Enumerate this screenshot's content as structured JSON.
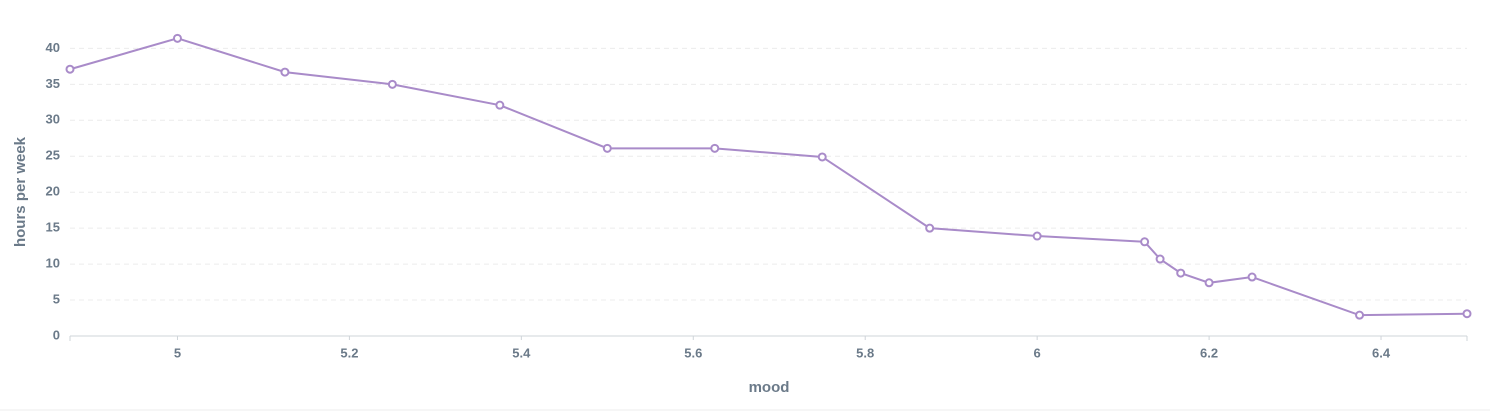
{
  "chart_data": {
    "type": "line",
    "x_label": "mood",
    "y_label": "hours per week",
    "x": [
      4.875,
      5,
      5.125,
      5.25,
      5.375,
      5.5,
      5.625,
      5.75,
      5.875,
      6,
      6.125,
      6.143,
      6.167,
      6.2,
      6.25,
      6.375,
      6.5
    ],
    "series": [
      {
        "name": "hours per week",
        "color": "#a98bc9",
        "values": [
          37.1,
          41.4,
          36.7,
          35,
          32.1,
          26.1,
          26.1,
          24.9,
          15,
          13.9,
          13.1,
          10.7,
          8.75,
          7.4,
          8.2,
          2.9,
          3.1
        ]
      }
    ],
    "xlim": [
      4.875,
      6.5
    ],
    "xticks": [
      5,
      5.2,
      5.4,
      5.6,
      5.8,
      6,
      6.2,
      6.4
    ],
    "ylim": [
      0,
      42
    ],
    "yticks": [
      0,
      5,
      10,
      15,
      20,
      25,
      30,
      35,
      40
    ],
    "grid": true
  }
}
